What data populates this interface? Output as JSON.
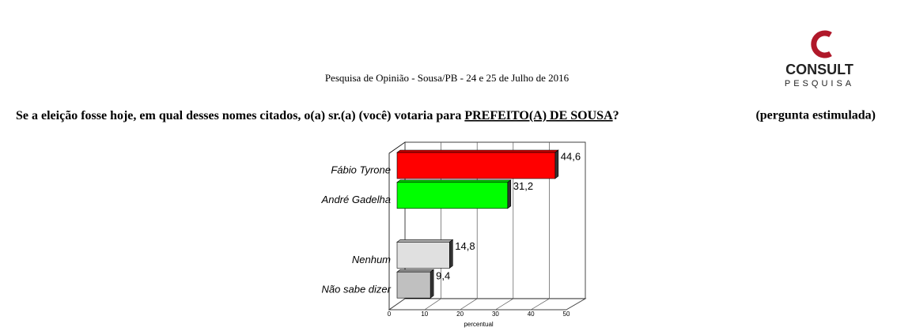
{
  "chart_data": {
    "type": "hbar3d",
    "logo": {
      "name": "CONSULT",
      "tagline": "PESQUISA"
    },
    "subtitle": "Pesquisa de Opinião  -  Sousa/PB  -  24 e 25 de Julho de 2016",
    "question": {
      "text": "Se a eleição fosse hoje, em qual desses nomes citados,  o(a) sr.(a) (você) votaria para ",
      "emphasis": "PREFEITO(A) DE SOUSA",
      "end": "?",
      "note": "(pergunta estimulada)"
    },
    "categories": [
      "Fábio Tyrone",
      "André Gadelha",
      null,
      "Nenhum",
      "Não sabe dizer"
    ],
    "values": [
      44.6,
      31.2,
      null,
      14.8,
      9.4
    ],
    "value_labels": [
      "44,6",
      "31,2",
      null,
      "14,8",
      "9,4"
    ],
    "colors": [
      "#ff0000",
      "#00ff00",
      null,
      "#e0e0e0",
      "#c0c0c0"
    ],
    "xlim": [
      0,
      50
    ],
    "xticks": [
      0,
      10,
      20,
      30,
      40,
      50
    ],
    "xlabel": "percentual",
    "grid": true
  }
}
